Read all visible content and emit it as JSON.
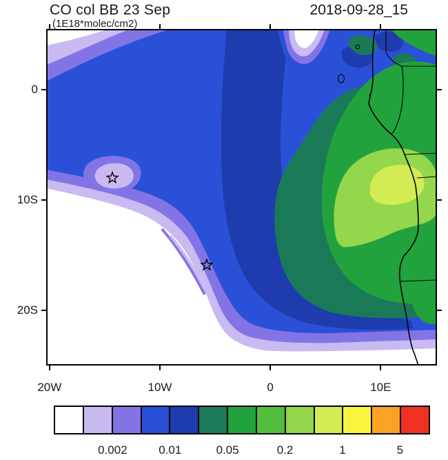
{
  "header": {
    "title": "CO col BB 23 Sep",
    "subtitle": "(1E18*molec/cm2)",
    "datestamp": "2018-09-28_15"
  },
  "chart_data": {
    "type": "heatmap",
    "title": "CO col BB 23 Sep",
    "units": "1E18*molec/cm2",
    "time": "2018-09-28_15",
    "description": "Filled contour map of CO column (biomass burning) over the southeast Atlantic and west-central Africa",
    "map_extent": {
      "lon_min": -20.3,
      "lon_max": 15.1,
      "lat_min": -25.0,
      "lat_max": 5.5
    },
    "x_axis": {
      "ticks": [
        {
          "label": "20W",
          "lon": -20
        },
        {
          "label": "10W",
          "lon": -10
        },
        {
          "label": "0",
          "lon": 0
        },
        {
          "label": "10E",
          "lon": 10
        }
      ]
    },
    "y_axis": {
      "ticks": [
        {
          "label": "0",
          "lat": 0
        },
        {
          "label": "10S",
          "lat": -10
        },
        {
          "label": "20S",
          "lat": -20
        }
      ]
    },
    "contour_levels": [
      0.001,
      0.002,
      0.005,
      0.01,
      0.02,
      0.05,
      0.1,
      0.2,
      0.5,
      1,
      2,
      5
    ],
    "palette": [
      "#ffffff",
      "#c9baf2",
      "#8374e6",
      "#2b50d8",
      "#1e3cae",
      "#1a7a58",
      "#22a23c",
      "#52bc3e",
      "#94d64c",
      "#d4ec54",
      "#f8f440",
      "#f9a226",
      "#ee3123"
    ],
    "colorbar_labels": [
      {
        "text": "0.002",
        "boundary": 2
      },
      {
        "text": "0.01",
        "boundary": 4
      },
      {
        "text": "0.05",
        "boundary": 6
      },
      {
        "text": "0.2",
        "boundary": 8
      },
      {
        "text": "1",
        "boundary": 10
      },
      {
        "text": "5",
        "boundary": 12
      }
    ],
    "markers": [
      {
        "type": "star",
        "lon": -14.3,
        "lat": -8.0
      },
      {
        "type": "star",
        "lon": -5.75,
        "lat": -15.9
      }
    ],
    "text_color": "#1a1a1a"
  }
}
